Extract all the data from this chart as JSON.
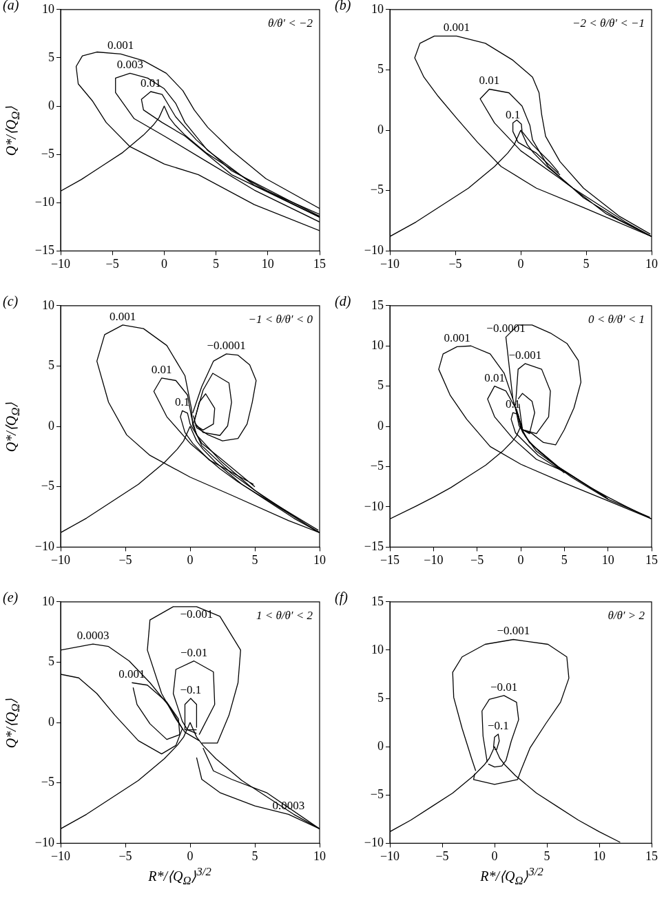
{
  "chart_data": [
    {
      "type": "line",
      "title": "(a)",
      "subtitle": "θ/θ′ < −2",
      "ylabel": "Q*/⟨Q$_{Ω}$⟩",
      "xlim": [
        -10,
        15
      ],
      "ylim": [
        -15,
        10
      ],
      "xticks": [
        -10,
        -5,
        0,
        5,
        10,
        15
      ],
      "yticks": [
        -15,
        -10,
        -5,
        0,
        5,
        10
      ],
      "line_style": "solid",
      "series": [
        {
          "color": "#000000",
          "x": [
            -10,
            -8,
            -6,
            -4,
            -2,
            -1,
            -0.5,
            0,
            0.5,
            1,
            2,
            4,
            6,
            8,
            10,
            12,
            15
          ],
          "values": [
            -8.8,
            -7.6,
            -6.2,
            -4.8,
            -3.0,
            -1.9,
            -1.2,
            0,
            -1.2,
            -1.9,
            -3.0,
            -4.8,
            -6.2,
            -7.6,
            -8.8,
            -9.9,
            -11.5
          ]
        },
        {
          "color": "#000000",
          "x": [
            15,
            8.7,
            3.3,
            0,
            -3.3,
            -5.6,
            -6.9,
            -8.3,
            -8.5,
            -7.9,
            -6.5,
            -4.2,
            -2.0,
            0.2,
            1.8,
            2.9,
            4.2,
            6.5,
            9.8,
            15
          ],
          "values": [
            -12.9,
            -10.2,
            -7.1,
            -6.0,
            -4.2,
            -1.7,
            0.5,
            2.3,
            4.1,
            5.2,
            5.6,
            5.4,
            4.7,
            3.4,
            1.6,
            -0.4,
            -2.2,
            -4.6,
            -7.5,
            -10.6
          ]
        },
        {
          "color": "#000000",
          "x": [
            15,
            8.7,
            4.2,
            0,
            -2.9,
            -4.7,
            -4.7,
            -3.3,
            -1.6,
            0,
            1.1,
            2.0,
            4.2,
            8.7,
            15
          ],
          "values": [
            -12.0,
            -8.7,
            -5.8,
            -3.1,
            -1.3,
            1.4,
            2.9,
            3.4,
            2.9,
            1.8,
            0.3,
            -1.7,
            -4.6,
            -8.2,
            -11.2
          ]
        },
        {
          "color": "#000000",
          "x": [
            15,
            6.5,
            2.0,
            -0.2,
            -2.0,
            -2.2,
            -1.3,
            -0.2,
            0.2,
            1.1,
            3.1,
            6.5,
            15
          ],
          "values": [
            -11.5,
            -7.1,
            -3.1,
            -1.7,
            -0.4,
            0.7,
            1.5,
            1.2,
            0.5,
            -1.1,
            -3.5,
            -6.7,
            -11.4
          ]
        }
      ],
      "annotations": [
        {
          "text": "0.001",
          "x": -4.2,
          "y": 5.4
        },
        {
          "text": "0.003",
          "x": -3.3,
          "y": 3.4
        },
        {
          "text": "0.01",
          "x": -1.3,
          "y": 1.5
        }
      ]
    },
    {
      "type": "line",
      "title": "(b)",
      "subtitle": "−2 < θ/θ′ < −1",
      "xlim": [
        -10,
        10
      ],
      "ylim": [
        -10,
        10
      ],
      "xticks": [
        -10,
        -5,
        0,
        5,
        10
      ],
      "yticks": [
        -10,
        -5,
        0,
        5,
        10
      ],
      "line_style": "solid",
      "series": [
        {
          "color": "#000000",
          "x": [
            -10,
            -8,
            -6,
            -4,
            -2,
            -1,
            -0.5,
            0,
            0.5,
            1,
            2,
            4,
            6,
            8,
            10
          ],
          "values": [
            -8.8,
            -7.6,
            -6.2,
            -4.8,
            -3.0,
            -1.9,
            -1.2,
            0,
            -1.2,
            -1.9,
            -3.0,
            -4.8,
            -6.2,
            -7.6,
            -8.8
          ]
        },
        {
          "color": "#000000",
          "x": [
            10,
            4.8,
            1.2,
            -1.5,
            -3.3,
            -4.9,
            -6.3,
            -7.4,
            -8.1,
            -7.7,
            -6.6,
            -4.9,
            -2.7,
            -0.6,
            0.9,
            1.4,
            1.6,
            1.9,
            3.0,
            4.8,
            7.5,
            9.9
          ],
          "values": [
            -8.8,
            -6.4,
            -4.8,
            -3.0,
            -1.0,
            1.0,
            2.8,
            4.4,
            6.0,
            7.2,
            7.8,
            7.8,
            7.2,
            5.8,
            4.4,
            3.1,
            1.3,
            -0.5,
            -2.6,
            -4.8,
            -7.1,
            -8.6
          ]
        },
        {
          "color": "#000000",
          "x": [
            10,
            6.5,
            4.1,
            3.0,
            0,
            -2.0,
            -3.1,
            -2.4,
            -0.9,
            0.1,
            0.7,
            0.9,
            2.1,
            4.8,
            7.5,
            9.8
          ],
          "values": [
            -8.8,
            -6.9,
            -4.9,
            -4.0,
            -1.7,
            0.6,
            2.6,
            3.4,
            3.1,
            2.0,
            0.4,
            -0.8,
            -3.0,
            -5.6,
            -7.4,
            -8.7
          ]
        },
        {
          "color": "#000000",
          "x": [
            3.0,
            1.2,
            -0.2,
            -0.6,
            -0.6,
            -0.3,
            0.05,
            0.1,
            0.9,
            2.2,
            2.9
          ],
          "values": [
            -3.7,
            -1.9,
            -1.0,
            -0.1,
            0.6,
            0.85,
            0.5,
            -0.1,
            -1.2,
            -2.6,
            -3.5
          ]
        }
      ],
      "annotations": [
        {
          "text": "0.001",
          "x": -4.9,
          "y": 7.8
        },
        {
          "text": "0.01",
          "x": -2.4,
          "y": 3.4
        },
        {
          "text": "0.1",
          "x": -0.6,
          "y": 0.6
        }
      ]
    },
    {
      "type": "line",
      "title": "(c)",
      "subtitle": "−1 < θ/θ′ < 0",
      "ylabel": "Q*/⟨Q$_{Ω}$⟩",
      "xlim": [
        -10,
        10
      ],
      "ylim": [
        -10,
        10
      ],
      "xticks": [
        -10,
        -5,
        0,
        5,
        10
      ],
      "yticks": [
        -10,
        -5,
        0,
        5,
        10
      ],
      "line_style": "solid",
      "series": [
        {
          "color": "#000000",
          "x": [
            -10,
            -8,
            -6,
            -4,
            -2,
            -1,
            -0.5,
            0,
            0.5,
            1,
            2,
            4,
            6,
            8,
            10
          ],
          "values": [
            -8.8,
            -7.6,
            -6.2,
            -4.8,
            -3.0,
            -1.9,
            -1.2,
            0,
            -1.2,
            -1.9,
            -3.0,
            -4.8,
            -6.2,
            -7.6,
            -8.8
          ]
        },
        {
          "color": "#000000",
          "x": [
            10,
            7.6,
            3.2,
            0,
            -3.1,
            -4.9,
            -6.3,
            -7.2,
            -6.6,
            -5.2,
            -3.6,
            -1.8,
            -0.4,
            0.1,
            0.2,
            0.9,
            3.2,
            5.9,
            9.9
          ],
          "values": [
            -8.8,
            -7.8,
            -5.7,
            -4.2,
            -2.4,
            -0.7,
            2.0,
            5.4,
            7.6,
            8.4,
            8.1,
            6.7,
            4.2,
            1.5,
            0.1,
            -1.6,
            -3.9,
            -6.0,
            -8.6
          ]
        },
        {
          "color": "#000000",
          "x": [
            10,
            3.7,
            2.3,
            0,
            -1.8,
            -2.8,
            -2.2,
            -1.1,
            -0.2,
            0.1,
            0.5,
            2.3,
            5.0,
            9.8
          ],
          "values": [
            -8.8,
            -4.6,
            -3.5,
            -1.4,
            0.8,
            2.9,
            4.0,
            3.8,
            2.6,
            0.8,
            -0.7,
            -2.8,
            -5.3,
            -8.7
          ]
        },
        {
          "color": "#000000",
          "x": [
            5.0,
            2.3,
            0.9,
            0,
            -0.2,
            -0.6,
            -0.75,
            -0.4,
            0.2,
            1.5,
            4.9
          ],
          "values": [
            -5.0,
            -2.6,
            -1.4,
            0.2,
            1.1,
            1.3,
            0.8,
            -0.5,
            -1.4,
            -2.8,
            -4.8
          ]
        },
        {
          "color": "#000000",
          "x": [
            0.2,
            0.9,
            1.8,
            2.8,
            3.7,
            4.6,
            5.1,
            4.8,
            4.4,
            3.7,
            2.5,
            1.4,
            0.5,
            0.25
          ],
          "values": [
            1.1,
            3.3,
            5.4,
            6.0,
            5.9,
            5.1,
            3.8,
            2.0,
            0.2,
            -1.0,
            -1.2,
            -0.7,
            -0.1,
            0.9
          ]
        },
        {
          "color": "#000000",
          "x": [
            0.3,
            1.0,
            1.75,
            3.0,
            3.2,
            2.9,
            2.3,
            1.0,
            0.35
          ],
          "values": [
            0.4,
            3.0,
            4.4,
            3.6,
            2.0,
            0.05,
            -0.75,
            -0.5,
            0.3
          ]
        },
        {
          "color": "#000000",
          "x": [
            0.3,
            0.7,
            1.2,
            1.9,
            1.8,
            1.0,
            0.4
          ],
          "values": [
            0.3,
            2.0,
            2.7,
            1.5,
            0.2,
            -0.3,
            0.1
          ]
        }
      ],
      "annotations": [
        {
          "text": "0.001",
          "x": -5.2,
          "y": 8.4
        },
        {
          "text": "0.01",
          "x": -2.2,
          "y": 4.0
        },
        {
          "text": "0.1",
          "x": -0.6,
          "y": 1.3
        },
        {
          "text": "−0.0001",
          "x": 2.8,
          "y": 6.0
        }
      ]
    },
    {
      "type": "line",
      "title": "(d)",
      "subtitle": "0 < θ/θ′ < 1",
      "xlim": [
        -15,
        15
      ],
      "ylim": [
        -15,
        15
      ],
      "xticks": [
        -15,
        -10,
        -5,
        0,
        5,
        10,
        15
      ],
      "yticks": [
        -15,
        -10,
        -5,
        0,
        5,
        10,
        15
      ],
      "line_style": "solid",
      "series": [
        {
          "color": "#000000",
          "x": [
            -15,
            -12,
            -10,
            -8,
            -6,
            -4,
            -2,
            -1,
            -0.5,
            0,
            0.5,
            1,
            2,
            4,
            6,
            8,
            10,
            12,
            15
          ],
          "values": [
            -11.5,
            -9.9,
            -8.8,
            -7.6,
            -6.2,
            -4.8,
            -3.0,
            -1.9,
            -1.2,
            0,
            -1.2,
            -1.9,
            -3.0,
            -4.8,
            -6.2,
            -7.6,
            -8.8,
            -9.9,
            -11.5
          ]
        },
        {
          "color": "#000000",
          "x": [
            15,
            9.9,
            4.5,
            0,
            -3.5,
            -6.2,
            -8.1,
            -9.4,
            -8.9,
            -7.3,
            -5.7,
            -3.5,
            -1.9,
            -0.9,
            -0.2,
            0.2,
            1.8,
            5.8,
            9.9,
            14.8
          ],
          "values": [
            -11.5,
            -9.2,
            -6.8,
            -4.7,
            -2.5,
            0.9,
            3.9,
            7.1,
            9.0,
            9.9,
            10.0,
            9.0,
            6.6,
            3.4,
            0.7,
            -0.7,
            -3.1,
            -6.3,
            -9.0,
            -11.3
          ]
        },
        {
          "color": "#000000",
          "x": [
            10,
            5.0,
            1.8,
            -0.9,
            -3.0,
            -3.8,
            -3.0,
            -1.7,
            -0.6,
            -0.2,
            1.0,
            4.5,
            9.8
          ],
          "values": [
            -9.0,
            -5.6,
            -4.1,
            -1.5,
            1.2,
            3.4,
            5.0,
            4.4,
            2.3,
            0.1,
            -2.0,
            -5.2,
            -8.8
          ]
        },
        {
          "color": "#000000",
          "x": [
            5.0,
            1.0,
            0,
            -0.3,
            -0.9,
            -1.1,
            -0.6,
            0.4,
            2.0,
            4.8
          ],
          "values": [
            -5.8,
            -2.0,
            -0.1,
            1.5,
            1.7,
            0.9,
            -0.8,
            -1.9,
            -3.6,
            -5.6
          ]
        },
        {
          "color": "#000000",
          "x": [
            -0.9,
            -1.7,
            -0.3,
            1.3,
            3.4,
            5.3,
            6.6,
            6.9,
            6.1,
            5.0,
            4.0,
            2.6,
            1.3,
            0.2,
            -0.8
          ],
          "values": [
            3.4,
            11.1,
            12.6,
            12.6,
            11.6,
            10.3,
            8.2,
            5.5,
            2.3,
            -0.4,
            -2.3,
            -2.0,
            -0.9,
            -0.4,
            3.0
          ]
        },
        {
          "color": "#000000",
          "x": [
            -0.6,
            -0.3,
            0.5,
            2.4,
            3.4,
            3.2,
            1.8,
            0.2,
            -0.5
          ],
          "values": [
            2.6,
            7.1,
            7.8,
            7.1,
            4.4,
            1.2,
            -0.9,
            -0.4,
            2.2
          ]
        },
        {
          "color": "#000000",
          "x": [
            -0.3,
            0.2,
            1.3,
            1.6,
            1.0,
            0.2,
            -0.2
          ],
          "values": [
            3.4,
            4.1,
            3.1,
            1.7,
            -0.9,
            -0.4,
            2.8
          ]
        }
      ],
      "annotations": [
        {
          "text": "−0.0001",
          "x": -1.7,
          "y": 11.1
        },
        {
          "text": "0.001",
          "x": -7.3,
          "y": 9.9
        },
        {
          "text": "−0.001",
          "x": 0.5,
          "y": 7.8
        },
        {
          "text": "0.01",
          "x": -3.0,
          "y": 5.0
        },
        {
          "text": "0.1",
          "x": -0.9,
          "y": 1.7
        }
      ]
    },
    {
      "type": "line",
      "title": "(e)",
      "subtitle": "1 < θ/θ′ < 2",
      "xlabel": "R*/⟨Q$_{Ω}$⟩$^{3/2}$",
      "ylabel": "Q*/⟨Q$_{Ω}$⟩",
      "xlim": [
        -10,
        10
      ],
      "ylim": [
        -10,
        10
      ],
      "xticks": [
        -10,
        -5,
        0,
        5,
        10
      ],
      "yticks": [
        -10,
        -5,
        0,
        5,
        10
      ],
      "line_style": "solid",
      "series": [
        {
          "color": "#000000",
          "x": [
            -10,
            -8,
            -6,
            -4,
            -2,
            -1,
            -0.5,
            0,
            0.5,
            1,
            2,
            4,
            6,
            8,
            10
          ],
          "values": [
            -8.8,
            -7.6,
            -6.2,
            -4.8,
            -3.0,
            -1.9,
            -1.2,
            0,
            -1.2,
            -1.9,
            -3.0,
            -4.8,
            -6.2,
            -7.6,
            -8.8
          ]
        },
        {
          "color": "#000000",
          "x": [
            0.9,
            2.1,
            3.0,
            3.7,
            3.9,
            2.3,
            0.5,
            -1.3,
            -3.1,
            -3.3,
            -2.2,
            -1.1,
            -0.4,
            0.7
          ],
          "values": [
            -1.7,
            -1.7,
            0.6,
            3.3,
            6.0,
            8.8,
            9.6,
            9.6,
            8.5,
            6.0,
            2.4,
            0.3,
            -0.8,
            -1.5
          ]
        },
        {
          "color": "#000000",
          "x": [
            0.7,
            1.9,
            1.8,
            0.3,
            -1.1,
            -1.3,
            -0.6,
            -0.2,
            0.5
          ],
          "values": [
            -1.0,
            1.5,
            4.2,
            5.1,
            4.4,
            2.4,
            0.1,
            -0.6,
            -0.9
          ]
        },
        {
          "color": "#000000",
          "x": [
            0.5,
            -0.4,
            -0.4,
            0.05,
            0.5,
            0.5
          ],
          "values": [
            -0.6,
            -0.6,
            1.5,
            2.0,
            1.5,
            -0.4
          ]
        },
        {
          "color": "#000000",
          "x": [
            -10,
            -7.5,
            -6.3,
            -4.7,
            -3.1,
            -1.5,
            -0.6,
            -1.1,
            -2.2,
            -4.0,
            -5.8,
            -7.2,
            -8.6,
            -10
          ],
          "values": [
            6.0,
            6.5,
            6.3,
            5.1,
            3.3,
            1.2,
            -0.5,
            -1.9,
            -2.6,
            -1.5,
            0.6,
            2.4,
            3.7,
            4.0
          ]
        },
        {
          "color": "#000000",
          "x": [
            0.5,
            0.9,
            2.3,
            5.0,
            7.6,
            10
          ],
          "values": [
            -2.9,
            -4.7,
            -5.8,
            -6.9,
            -7.6,
            -8.8
          ]
        },
        {
          "color": "#000000",
          "x": [
            -4.5,
            -3.3,
            -1.8,
            -0.9,
            -0.8,
            -1.8,
            -3.1,
            -4.1,
            -4.4
          ],
          "values": [
            3.3,
            3.1,
            1.7,
            0.3,
            -1.0,
            -1.4,
            -0.1,
            1.5,
            2.9
          ]
        },
        {
          "color": "#000000",
          "x": [
            1.0,
            1.8,
            3.2,
            5.9,
            10
          ],
          "values": [
            -2.1,
            -4.0,
            -4.7,
            -5.8,
            -8.8
          ]
        }
      ],
      "annotations": [
        {
          "text": "0.0003",
          "x": -7.5,
          "y": 6.5
        },
        {
          "text": "0.001",
          "x": -4.5,
          "y": 3.3
        },
        {
          "text": "−0.001",
          "x": 0.5,
          "y": 9.6
        },
        {
          "text": "−0.01",
          "x": 0.3,
          "y": 5.1
        },
        {
          "text": "−0.1",
          "x": 0.05,
          "y": 2.0
        },
        {
          "text": "0.0003",
          "x": 7.6,
          "y": -7.6
        }
      ]
    },
    {
      "type": "line",
      "title": "(f)",
      "subtitle": "θ/θ′ > 2",
      "xlabel": "R*/⟨Q$_{Ω}$⟩$^{3/2}$",
      "xlim": [
        -10,
        15
      ],
      "ylim": [
        -10,
        15
      ],
      "xticks": [
        -10,
        -5,
        0,
        5,
        10,
        15
      ],
      "yticks": [
        -10,
        -5,
        0,
        5,
        10,
        15
      ],
      "line_style": "solid",
      "series": [
        {
          "color": "#000000",
          "x": [
            -10,
            -8,
            -6,
            -4,
            -2,
            -1,
            -0.5,
            0,
            0.5,
            1,
            2,
            4,
            6,
            8,
            10,
            12
          ],
          "values": [
            -8.8,
            -7.6,
            -6.2,
            -4.8,
            -3.0,
            -1.9,
            -1.2,
            0,
            -1.2,
            -1.9,
            -3.0,
            -4.8,
            -6.2,
            -7.6,
            -8.8,
            -9.9
          ]
        },
        {
          "color": "#000000",
          "x": [
            -1.8,
            -2.2,
            -3.1,
            -3.9,
            -4.0,
            -3.1,
            -0.9,
            1.8,
            5.1,
            6.9,
            7.1,
            6.3,
            4.9,
            3.4,
            2.5,
            2.2,
            0,
            -2.0,
            -1.9
          ],
          "values": [
            -2.5,
            -1.2,
            1.9,
            5.1,
            7.7,
            9.3,
            10.6,
            11.1,
            10.6,
            9.3,
            7.1,
            4.6,
            2.4,
            -0.1,
            -2.5,
            -3.4,
            -3.9,
            -3.4,
            -2.8
          ]
        },
        {
          "color": "#000000",
          "x": [
            -0.7,
            -1.1,
            -1.2,
            -0.5,
            0.9,
            2.1,
            2.3,
            1.6,
            1.1,
            0.7,
            0,
            -0.6
          ],
          "values": [
            -1.6,
            1.1,
            3.7,
            4.9,
            5.3,
            4.6,
            2.8,
            0.6,
            -1.4,
            -2.0,
            -2.1,
            -1.8
          ]
        },
        {
          "color": "#000000",
          "x": [
            -0.1,
            0,
            0.35,
            0.45,
            0.2,
            0
          ],
          "values": [
            -0.1,
            1.0,
            1.3,
            0.6,
            -0.3,
            -0.3
          ]
        }
      ],
      "annotations": [
        {
          "text": "−0.001",
          "x": 1.8,
          "y": 11.1
        },
        {
          "text": "−0.01",
          "x": 0.9,
          "y": 5.3
        },
        {
          "text": "−0.1",
          "x": 0.35,
          "y": 1.3
        }
      ]
    }
  ]
}
